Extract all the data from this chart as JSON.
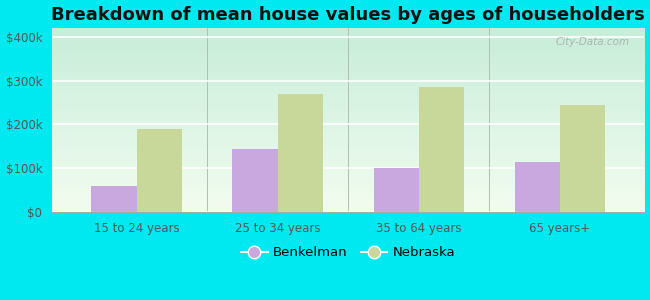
{
  "title": "Breakdown of mean house values by ages of householders",
  "categories": [
    "15 to 24 years",
    "25 to 34 years",
    "35 to 64 years",
    "65 years+"
  ],
  "benkelman_values": [
    60000,
    145000,
    100000,
    115000
  ],
  "nebraska_values": [
    190000,
    270000,
    285000,
    245000
  ],
  "benkelman_color": "#c9a8e0",
  "nebraska_color": "#c8d89a",
  "background_color": "#00e8f0",
  "ylim": [
    0,
    420000
  ],
  "yticks": [
    0,
    100000,
    200000,
    300000,
    400000
  ],
  "ytick_labels": [
    "$0",
    "$100k",
    "$200k",
    "$300k",
    "$400k"
  ],
  "bar_width": 0.32,
  "legend_labels": [
    "Benkelman",
    "Nebraska"
  ],
  "watermark": "City-Data.com",
  "title_fontsize": 13,
  "tick_fontsize": 8.5,
  "legend_fontsize": 9.5
}
